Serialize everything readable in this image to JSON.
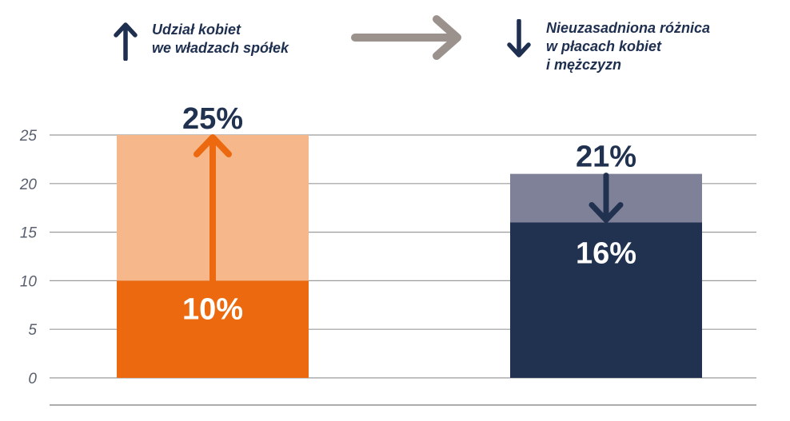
{
  "legend": {
    "left_lines": [
      "Udział kobiet",
      "we władzach spółek"
    ],
    "right_lines": [
      "Nieuzasadniona różnica",
      "w płacach kobiet",
      "i mężczyzn"
    ]
  },
  "colors": {
    "navy": "#213250",
    "orange": "#ec690f",
    "orange_light": "#f6b88a",
    "slate": "#7f8199",
    "gray_arrow": "#9c928d",
    "grid": "#9b9b9b"
  },
  "chart_data": {
    "type": "bar",
    "ylim": [
      0,
      25
    ],
    "yticks": [
      "0",
      "5",
      "10",
      "15",
      "20",
      "25"
    ],
    "grid": true,
    "bars": [
      {
        "group": "Udział kobiet we władzach spółek",
        "from": 10,
        "to": 25,
        "direction": "up",
        "base_label": "10%",
        "target_label": "25%"
      },
      {
        "group": "Nieuzasadniona różnica w płacach kobiet i mężczyzn",
        "from": 21,
        "to": 16,
        "direction": "down",
        "base_label": "16%",
        "target_label": "21%"
      }
    ]
  }
}
